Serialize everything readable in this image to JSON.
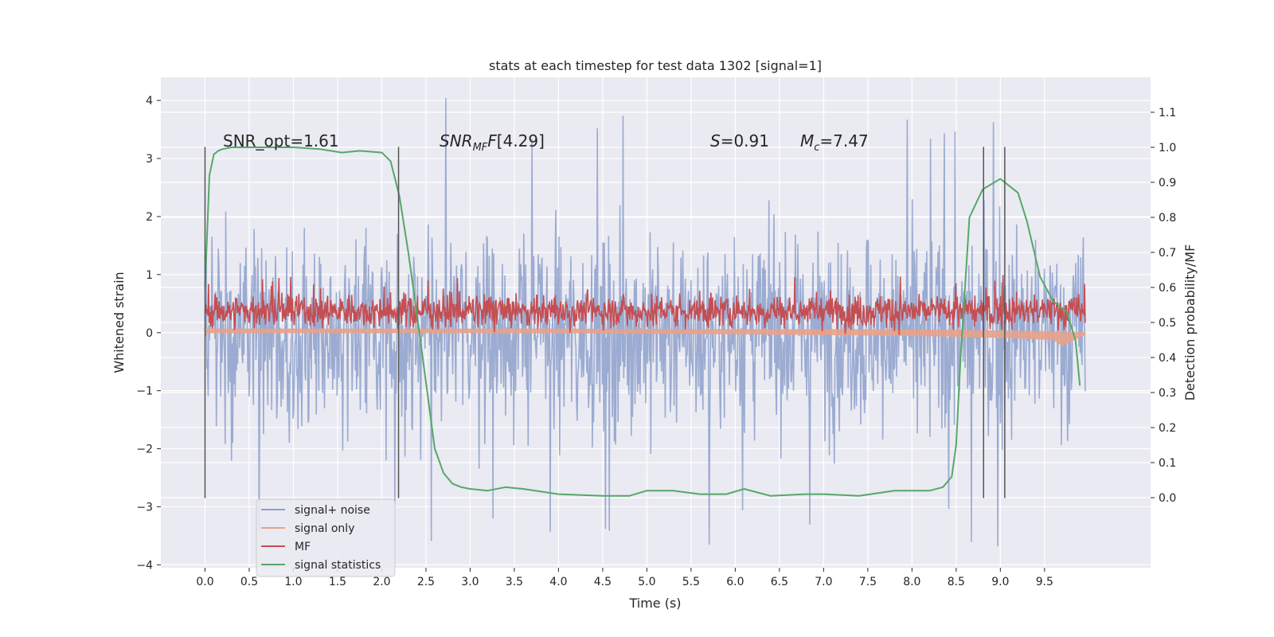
{
  "chart_data": {
    "type": "line",
    "title": "stats at each timestep for test data 1302 [signal=1]",
    "xlabel": "Time (s)",
    "ylabel_left": "Whitened strain",
    "ylabel_right": "Detection probability/MF",
    "xlim": [
      -0.5,
      10.7
    ],
    "ylim_left": [
      -4.05,
      4.4
    ],
    "ylim_right": [
      -0.2,
      1.2
    ],
    "x_ticks": [
      "0.0",
      "0.5",
      "1.0",
      "1.5",
      "2.0",
      "2.5",
      "3.0",
      "3.5",
      "4.0",
      "4.5",
      "5.0",
      "5.5",
      "6.0",
      "6.5",
      "7.0",
      "7.5",
      "8.0",
      "8.5",
      "9.0",
      "9.5"
    ],
    "y_ticks_left": [
      "4",
      "3",
      "2",
      "1",
      "0",
      "−1",
      "−2",
      "−3",
      "−4"
    ],
    "y_ticks_right": [
      "1.1",
      "1.0",
      "0.9",
      "0.8",
      "0.7",
      "0.6",
      "0.5",
      "0.4",
      "0.3",
      "0.2",
      "0.1",
      "0.0"
    ],
    "grid": true,
    "legend_position": "lower-left",
    "series": [
      {
        "name": "signal+ noise",
        "axis": "left",
        "color": "#8da0cb",
        "x_range": [
          0.0,
          9.96
        ],
        "typical_range": [
          -1.5,
          1.5
        ],
        "extremes": [
          -3.7,
          4.05
        ]
      },
      {
        "name": "signal only",
        "axis": "left",
        "color": "#e8a28a",
        "x": [
          0.0,
          2.0,
          4.0,
          6.0,
          7.5,
          8.5,
          9.2,
          9.6,
          9.7,
          9.96
        ],
        "upper": [
          0.06,
          0.06,
          0.06,
          0.05,
          0.05,
          0.04,
          0.02,
          0.02,
          0.0,
          0.0
        ],
        "lower": [
          0.0,
          0.0,
          0.0,
          -0.02,
          -0.04,
          -0.06,
          -0.09,
          -0.12,
          -0.22,
          -0.03
        ]
      },
      {
        "name": "MF",
        "axis": "left",
        "color": "#c44e52",
        "x_range": [
          0.0,
          9.96
        ],
        "typical_range": [
          0.0,
          0.75
        ],
        "extremes": [
          -0.1,
          1.0
        ]
      },
      {
        "name": "signal statistics",
        "axis": "right",
        "color": "#55a868",
        "x": [
          0.0,
          0.05,
          0.1,
          0.15,
          0.2,
          0.3,
          0.5,
          1.0,
          1.3,
          1.55,
          1.75,
          2.0,
          2.1,
          2.2,
          2.3,
          2.4,
          2.5,
          2.6,
          2.7,
          2.8,
          2.9,
          3.0,
          3.2,
          3.4,
          3.6,
          4.0,
          4.5,
          4.8,
          5.0,
          5.3,
          5.6,
          5.9,
          6.1,
          6.4,
          6.8,
          7.0,
          7.4,
          7.8,
          8.2,
          8.35,
          8.45,
          8.5,
          8.55,
          8.65,
          8.8,
          9.0,
          9.2,
          9.3,
          9.45,
          9.6,
          9.75,
          9.85,
          9.9
        ],
        "y": [
          0.6,
          0.92,
          0.98,
          0.99,
          0.995,
          1.0,
          1.0,
          1.0,
          0.995,
          0.985,
          0.99,
          0.985,
          0.96,
          0.86,
          0.7,
          0.52,
          0.33,
          0.14,
          0.07,
          0.04,
          0.03,
          0.025,
          0.02,
          0.03,
          0.025,
          0.01,
          0.005,
          0.005,
          0.02,
          0.02,
          0.01,
          0.01,
          0.025,
          0.005,
          0.01,
          0.01,
          0.005,
          0.02,
          0.02,
          0.03,
          0.06,
          0.15,
          0.4,
          0.8,
          0.88,
          0.91,
          0.87,
          0.79,
          0.63,
          0.56,
          0.53,
          0.45,
          0.32
        ]
      }
    ],
    "vertical_markers": [
      0.0,
      2.19,
      8.81,
      9.05
    ],
    "annotations": {
      "snr_opt": "SNR_opt=1.61",
      "snr_mf": "[4.29]",
      "s_val": "=0.91",
      "mc_val": "=7.47"
    }
  }
}
